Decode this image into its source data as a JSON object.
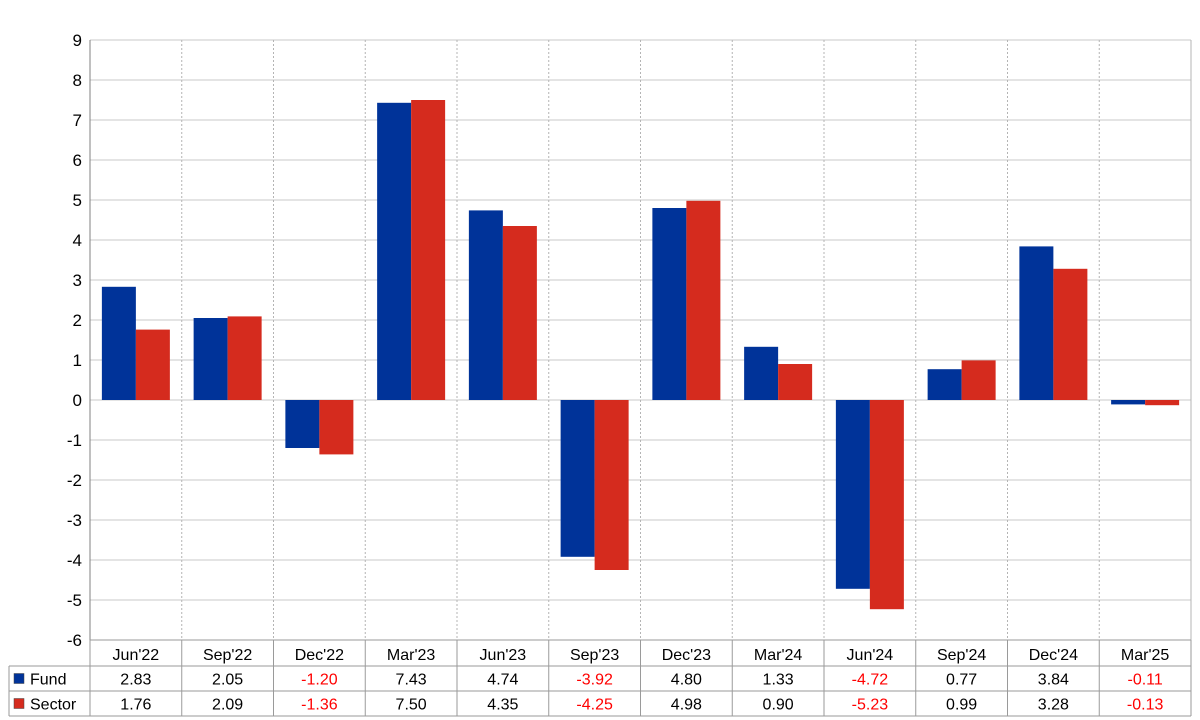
{
  "chart_data": {
    "type": "bar",
    "categories": [
      "Jun'22",
      "Sep'22",
      "Dec'22",
      "Mar'23",
      "Jun'23",
      "Sep'23",
      "Dec'23",
      "Mar'24",
      "Jun'24",
      "Sep'24",
      "Dec'24",
      "Mar'25"
    ],
    "series": [
      {
        "name": "Fund",
        "color": "#003399",
        "values": [
          2.83,
          2.05,
          -1.2,
          7.43,
          4.74,
          -3.92,
          4.8,
          1.33,
          -4.72,
          0.77,
          3.84,
          -0.11
        ],
        "labels": [
          "2.83",
          "2.05",
          "-1.20",
          "7.43",
          "4.74",
          "-3.92",
          "4.80",
          "1.33",
          "-4.72",
          "0.77",
          "3.84",
          "-0.11"
        ]
      },
      {
        "name": "Sector",
        "color": "#d52b1e",
        "values": [
          1.76,
          2.09,
          -1.36,
          7.5,
          4.35,
          -4.25,
          4.98,
          0.9,
          -5.23,
          0.99,
          3.28,
          -0.13
        ],
        "labels": [
          "1.76",
          "2.09",
          "-1.36",
          "7.50",
          "4.35",
          "-4.25",
          "4.98",
          "0.90",
          "-5.23",
          "0.99",
          "3.28",
          "-0.13"
        ]
      }
    ],
    "yticks": [
      "9",
      "8",
      "7",
      "6",
      "5",
      "4",
      "3",
      "2",
      "1",
      "0",
      "-1",
      "-2",
      "-3",
      "-4",
      "-5",
      "-6"
    ],
    "ylim": [
      -6,
      9
    ],
    "grid": true,
    "legend": "data-table-left",
    "negative_color": "#ff0000",
    "title": "",
    "xlabel": "",
    "ylabel": ""
  }
}
